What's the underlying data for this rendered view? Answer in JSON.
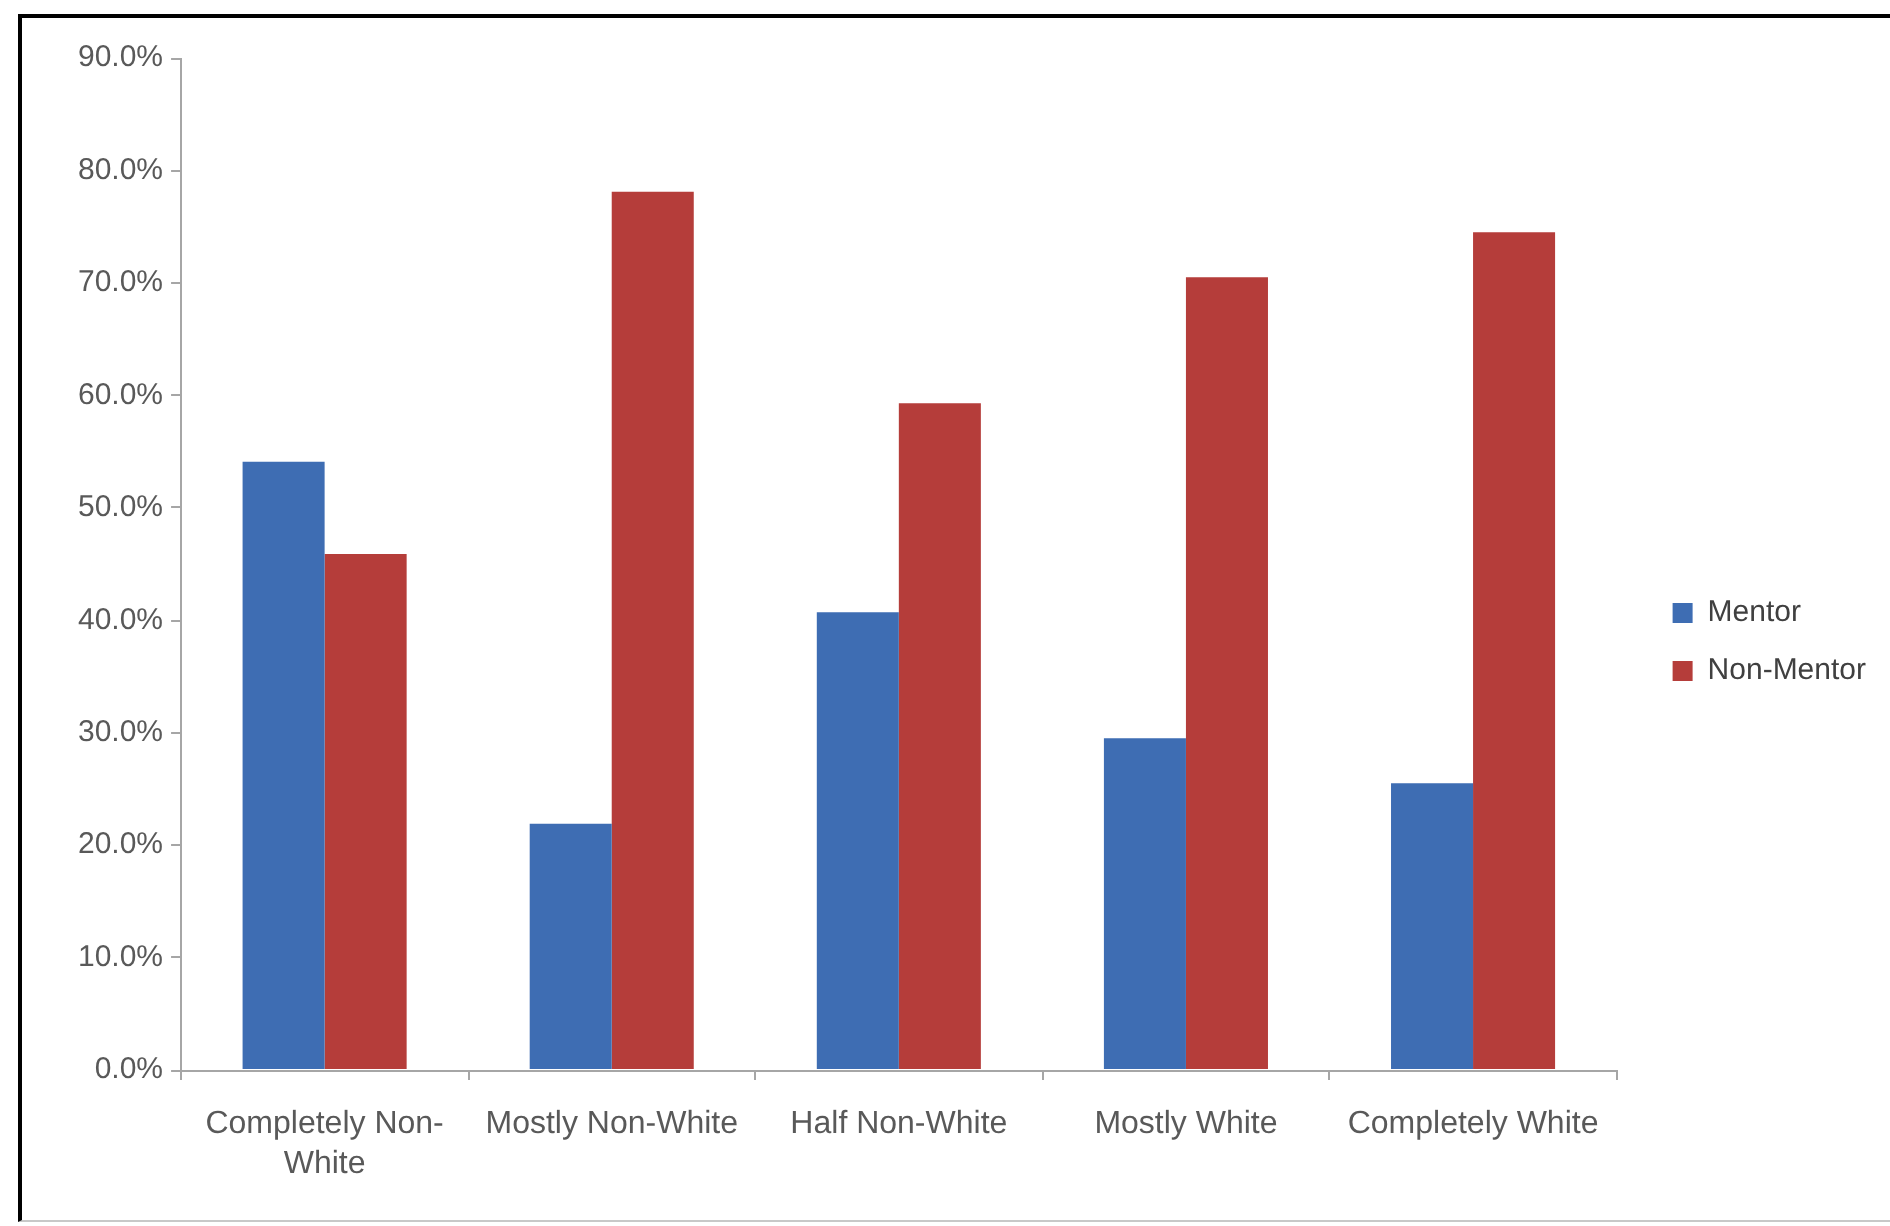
{
  "chart_data": {
    "type": "bar",
    "categories": [
      "Completely Non-White",
      "Mostly Non-White",
      "Half Non-White",
      "Mostly White",
      "Completely White"
    ],
    "series": [
      {
        "name": "Mentor",
        "color": "#3e6db3",
        "values": [
          54.1,
          21.9,
          40.7,
          29.5,
          25.5
        ]
      },
      {
        "name": "Non-Mentor",
        "color": "#b53d3a",
        "values": [
          45.9,
          78.1,
          59.3,
          70.5,
          74.5
        ]
      }
    ],
    "ylim": [
      0,
      90
    ],
    "yticks": [
      {
        "value": 0,
        "label": "0.0%"
      },
      {
        "value": 10,
        "label": "10.0%"
      },
      {
        "value": 20,
        "label": "20.0%"
      },
      {
        "value": 30,
        "label": "30.0%"
      },
      {
        "value": 40,
        "label": "40.0%"
      },
      {
        "value": 50,
        "label": "50.0%"
      },
      {
        "value": 60,
        "label": "60.0%"
      },
      {
        "value": 70,
        "label": "70.0%"
      },
      {
        "value": 80,
        "label": "80.0%"
      },
      {
        "value": 90,
        "label": "90.0%"
      }
    ],
    "grid": false,
    "legend": "right"
  }
}
